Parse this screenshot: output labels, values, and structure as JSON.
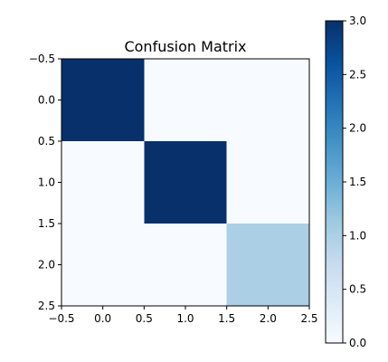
{
  "chart_data": {
    "type": "heatmap",
    "title": "Confusion Matrix",
    "xlabel": "",
    "ylabel": "",
    "rows": 3,
    "cols": 3,
    "values": [
      [
        3,
        0,
        0
      ],
      [
        0,
        3,
        0
      ],
      [
        0,
        0,
        1
      ]
    ],
    "xlim": [
      -0.5,
      2.5
    ],
    "ylim": [
      2.5,
      -0.5
    ],
    "x_ticks": [
      -0.5,
      0.0,
      0.5,
      1.0,
      1.5,
      2.0,
      2.5
    ],
    "x_tick_labels": [
      "−0.5",
      "0.0",
      "0.5",
      "1.0",
      "1.5",
      "2.0",
      "2.5"
    ],
    "y_ticks": [
      -0.5,
      0.0,
      0.5,
      1.0,
      1.5,
      2.0,
      2.5
    ],
    "y_tick_labels": [
      "−0.5",
      "0.0",
      "0.5",
      "1.0",
      "1.5",
      "2.0",
      "2.5"
    ],
    "colormap": "Blues",
    "color_range": [
      0.0,
      3.0
    ],
    "colorbar_ticks": [
      0.0,
      0.5,
      1.0,
      1.5,
      2.0,
      2.5,
      3.0
    ],
    "colorbar_tick_labels": [
      "0.0",
      "0.5",
      "1.0",
      "1.5",
      "2.0",
      "2.5",
      "3.0"
    ],
    "grid": false
  }
}
